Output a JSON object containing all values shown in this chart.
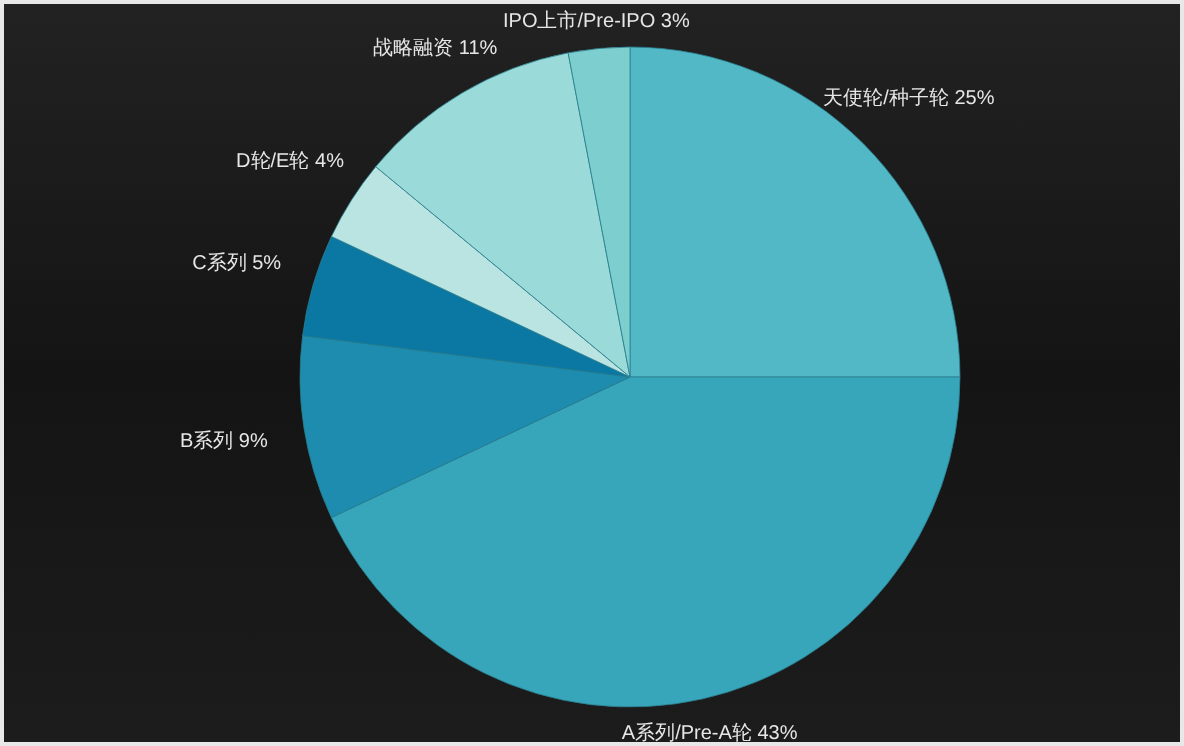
{
  "chart_data": {
    "type": "pie",
    "categories": [
      "天使轮/种子轮",
      "A系列/Pre-A轮",
      "B系列",
      "C系列",
      "D轮/E轮",
      "战略融资",
      "IPO上市/Pre-IPO"
    ],
    "values": [
      25,
      43,
      9,
      5,
      4,
      11,
      3
    ],
    "value_labels": [
      "25%",
      "43%",
      "9%",
      "5%",
      "4%",
      "11%",
      "3%"
    ],
    "colors": [
      "#53b8c6",
      "#37a5ba",
      "#1e8caf",
      "#0b77a3",
      "#bae4e2",
      "#9adad8",
      "#7dcfcf"
    ]
  }
}
